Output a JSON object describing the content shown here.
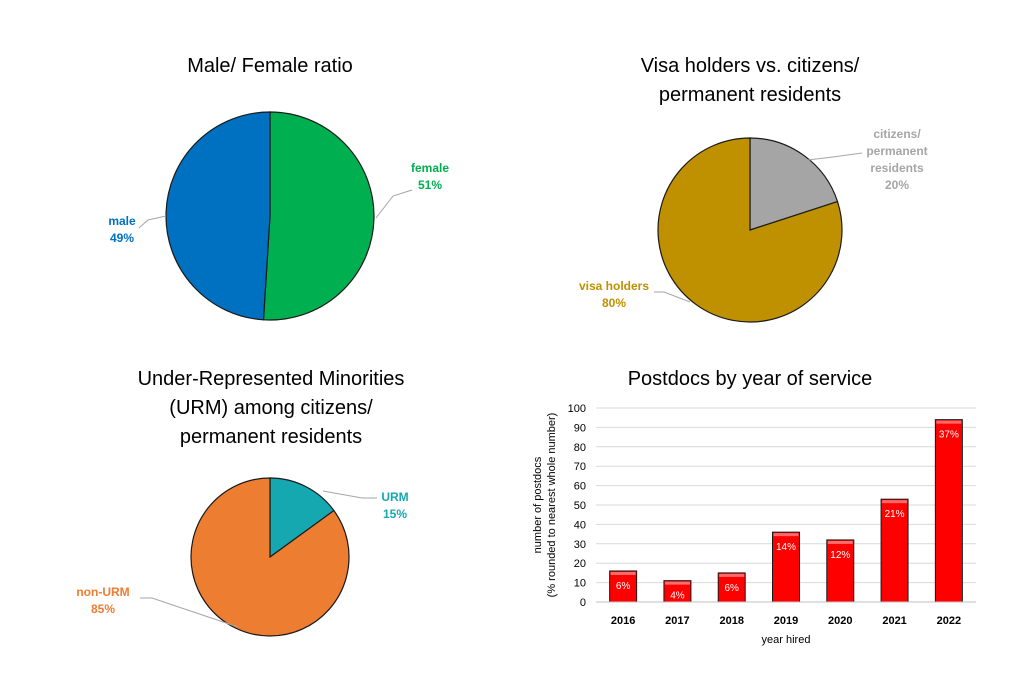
{
  "chart_data": [
    {
      "type": "pie",
      "title": "Male/ Female ratio",
      "slices": [
        {
          "label": "female",
          "value": 51,
          "display": "51%",
          "color": "#00b050"
        },
        {
          "label": "male",
          "value": 49,
          "display": "49%",
          "color": "#0070c0"
        }
      ]
    },
    {
      "type": "pie",
      "title": [
        "Visa holders vs. citizens/",
        "permanent residents"
      ],
      "slices": [
        {
          "label": [
            "citizens/",
            "permanent",
            "residents"
          ],
          "value": 20,
          "display": "20%",
          "color": "#a5a5a5",
          "label_color": "#a5a5a5"
        },
        {
          "label": [
            "visa holders"
          ],
          "value": 80,
          "display": "80%",
          "color": "#bf9000",
          "label_color": "#bf9000"
        }
      ]
    },
    {
      "type": "pie",
      "title": [
        "Under-Represented Minorities",
        "(URM) among citizens/",
        "permanent residents"
      ],
      "slices": [
        {
          "label": [
            "URM"
          ],
          "value": 15,
          "display": "15%",
          "color": "#15a8b0",
          "label_color": "#15a8b0"
        },
        {
          "label": [
            "non-URM"
          ],
          "value": 85,
          "display": "85%",
          "color": "#ed7d31",
          "label_color": "#ed7d31"
        }
      ]
    },
    {
      "type": "bar",
      "title": "Postdocs by year of service",
      "xlabel": "year hired",
      "ylabel": [
        "number of postdocs",
        "(% rounded to nearest whole number)"
      ],
      "categories": [
        "2016",
        "2017",
        "2018",
        "2019",
        "2020",
        "2021",
        "2022"
      ],
      "values": [
        16,
        11,
        15,
        36,
        32,
        53,
        94
      ],
      "data_labels": [
        "6%",
        "4%",
        "6%",
        "14%",
        "12%",
        "21%",
        "37%"
      ],
      "ylim": [
        0,
        100
      ],
      "yticks": [
        0,
        10,
        20,
        30,
        40,
        50,
        60,
        70,
        80,
        90,
        100
      ],
      "grid": true,
      "bar_color": "#ff0000"
    }
  ]
}
